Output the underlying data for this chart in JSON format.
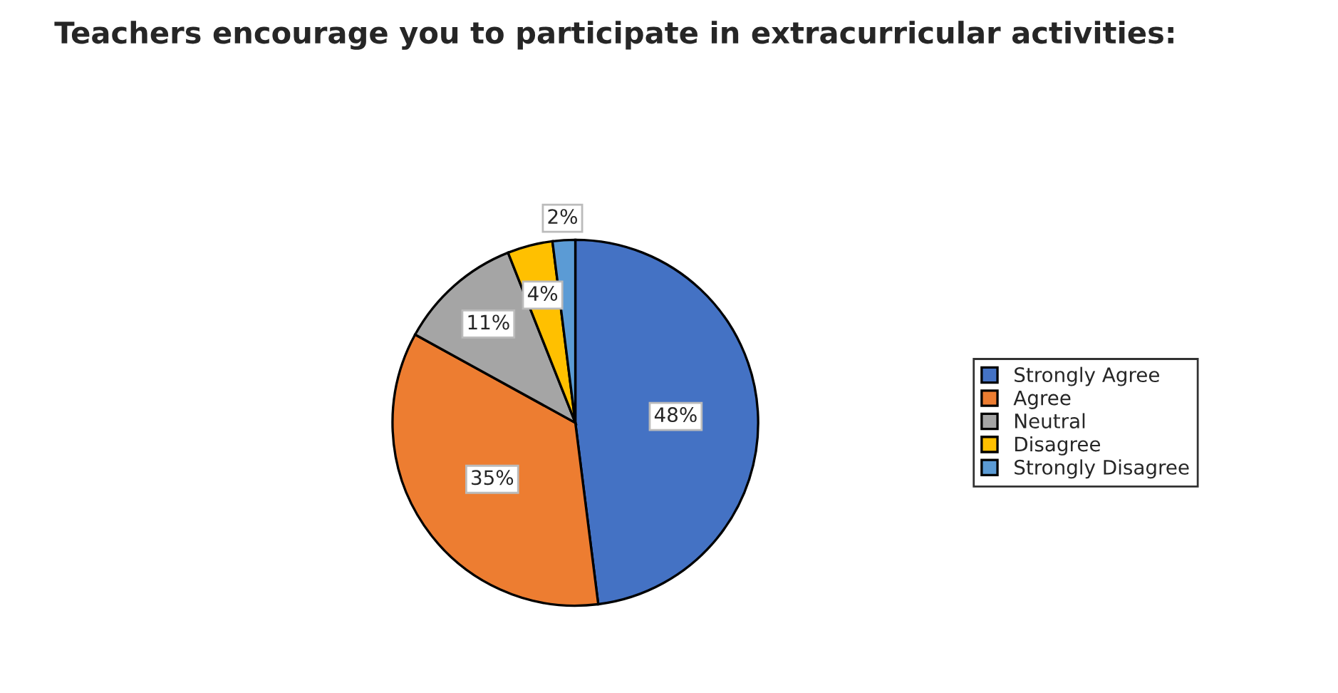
{
  "chart_data": {
    "type": "pie",
    "title": "Teachers encourage you to participate in extracurricular activities:",
    "categories": [
      "Strongly Agree",
      "Agree",
      "Neutral",
      "Disagree",
      "Strongly Disagree"
    ],
    "values": [
      48,
      35,
      11,
      4,
      2
    ],
    "colors": [
      "#4472c4",
      "#ed7d31",
      "#a5a5a5",
      "#ffc000",
      "#5b9bd5"
    ],
    "value_labels": [
      "48%",
      "35%",
      "11%",
      "4%",
      "2%"
    ],
    "legend": "right"
  }
}
